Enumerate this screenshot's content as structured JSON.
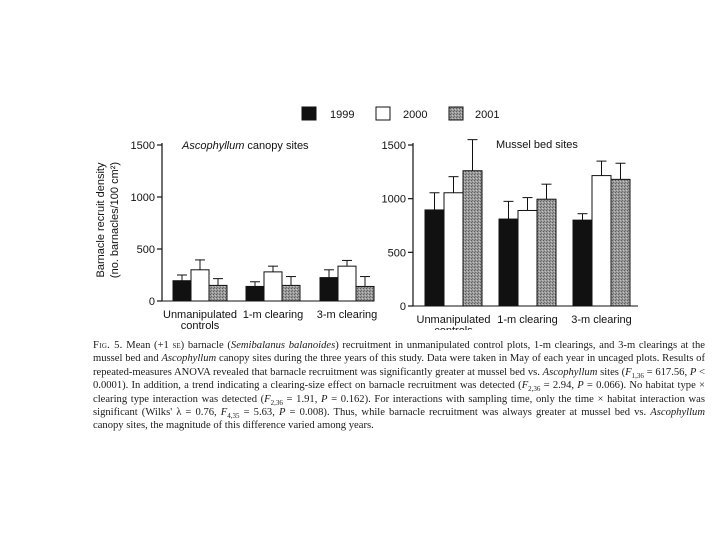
{
  "legend": {
    "items": [
      {
        "label": "1999",
        "color": "#111111"
      },
      {
        "label": "2000",
        "color": "#ffffff"
      },
      {
        "label": "2001",
        "color": "#9a9a9a"
      }
    ]
  },
  "colors": {
    "y1999": "#111111",
    "y2000": "#ffffff",
    "y2001": "#9a9a9a",
    "axis": "#111111"
  },
  "chart_data": [
    {
      "type": "bar",
      "title_italic": "Ascophyllum",
      "title_rest": " canopy sites",
      "ylabel_line1": "Barnacle recruit density",
      "ylabel_line2": "(no. barnacles/100 cm²)",
      "ylim": [
        0,
        1500
      ],
      "yticks": [
        0,
        500,
        1000,
        1500
      ],
      "categories": [
        "Unmanipulated controls",
        "1-m clearing",
        "3-m clearing"
      ],
      "category_lines": [
        [
          "Unmanipulated",
          "controls"
        ],
        [
          "1-m clearing"
        ],
        [
          "3-m clearing"
        ]
      ],
      "series": [
        {
          "name": "1999",
          "values": [
            195,
            140,
            225
          ],
          "errors": [
            55,
            45,
            75
          ]
        },
        {
          "name": "2000",
          "values": [
            300,
            280,
            335
          ],
          "errors": [
            95,
            55,
            55
          ]
        },
        {
          "name": "2001",
          "values": [
            150,
            150,
            140
          ],
          "errors": [
            65,
            85,
            95
          ]
        }
      ]
    },
    {
      "type": "bar",
      "title_italic": "",
      "title_rest": "Mussel bed sites",
      "ylim": [
        0,
        1500
      ],
      "yticks": [
        0,
        500,
        1000,
        1500
      ],
      "categories": [
        "Unmanipulated controls",
        "1-m clearing",
        "3-m clearing"
      ],
      "category_lines": [
        [
          "Unmanipulated",
          "controls"
        ],
        [
          "1-m clearing"
        ],
        [
          "3-m clearing"
        ]
      ],
      "series": [
        {
          "name": "1999",
          "values": [
            895,
            810,
            800
          ],
          "errors": [
            160,
            165,
            60
          ]
        },
        {
          "name": "2000",
          "values": [
            1055,
            890,
            1215
          ],
          "errors": [
            150,
            120,
            135
          ]
        },
        {
          "name": "2001",
          "values": [
            1260,
            995,
            1180
          ],
          "errors": [
            290,
            140,
            150
          ]
        }
      ]
    }
  ],
  "caption": {
    "fig_label": "Fig. 5.",
    "p1": "  Mean (+1 ",
    "se": "se",
    "p2": ") barnacle (",
    "species": "Semibalanus balanoides",
    "p3": ") recruitment in unmanipulated control plots, 1-m clearings, and 3-m clearings at the mussel bed and ",
    "asco1": "Ascophyllum",
    "p4": " canopy sites during the three years of this study. Data were taken in May of each year in uncaged plots. Results of repeated-measures ANOVA revealed that barnacle recruitment was significantly greater at mussel bed vs. ",
    "asco2": "Ascophyllum",
    "p5": " sites (",
    "f1": "F",
    "f1sub": "1,36",
    "p6": " = 617.56, ",
    "pa": "P",
    "p7": " < 0.0001). In addition, a trend indicating a clearing-size effect on barnacle recruitment was detected (",
    "f2": "F",
    "f2sub": "2,36",
    "p8": " = 2.94, ",
    "pb": "P",
    "p9": " = 0.066). No habitat type × clearing type interaction was detected (",
    "f3": "F",
    "f3sub": "2,36",
    "p10": " = 1.91, ",
    "pc": "P",
    "p11": " = 0.162). For interactions with sampling time, only the time × habitat interaction was significant (Wilks' λ = 0.76, ",
    "f4": "F",
    "f4sub": "4,35",
    "p12": " = 5.63, ",
    "pd": "P",
    "p13": " = 0.008). Thus, while barnacle recruitment was always greater at mussel bed vs. ",
    "asco3": "Ascophyllum",
    "p14": " canopy sites, the magnitude of this difference varied among years."
  }
}
